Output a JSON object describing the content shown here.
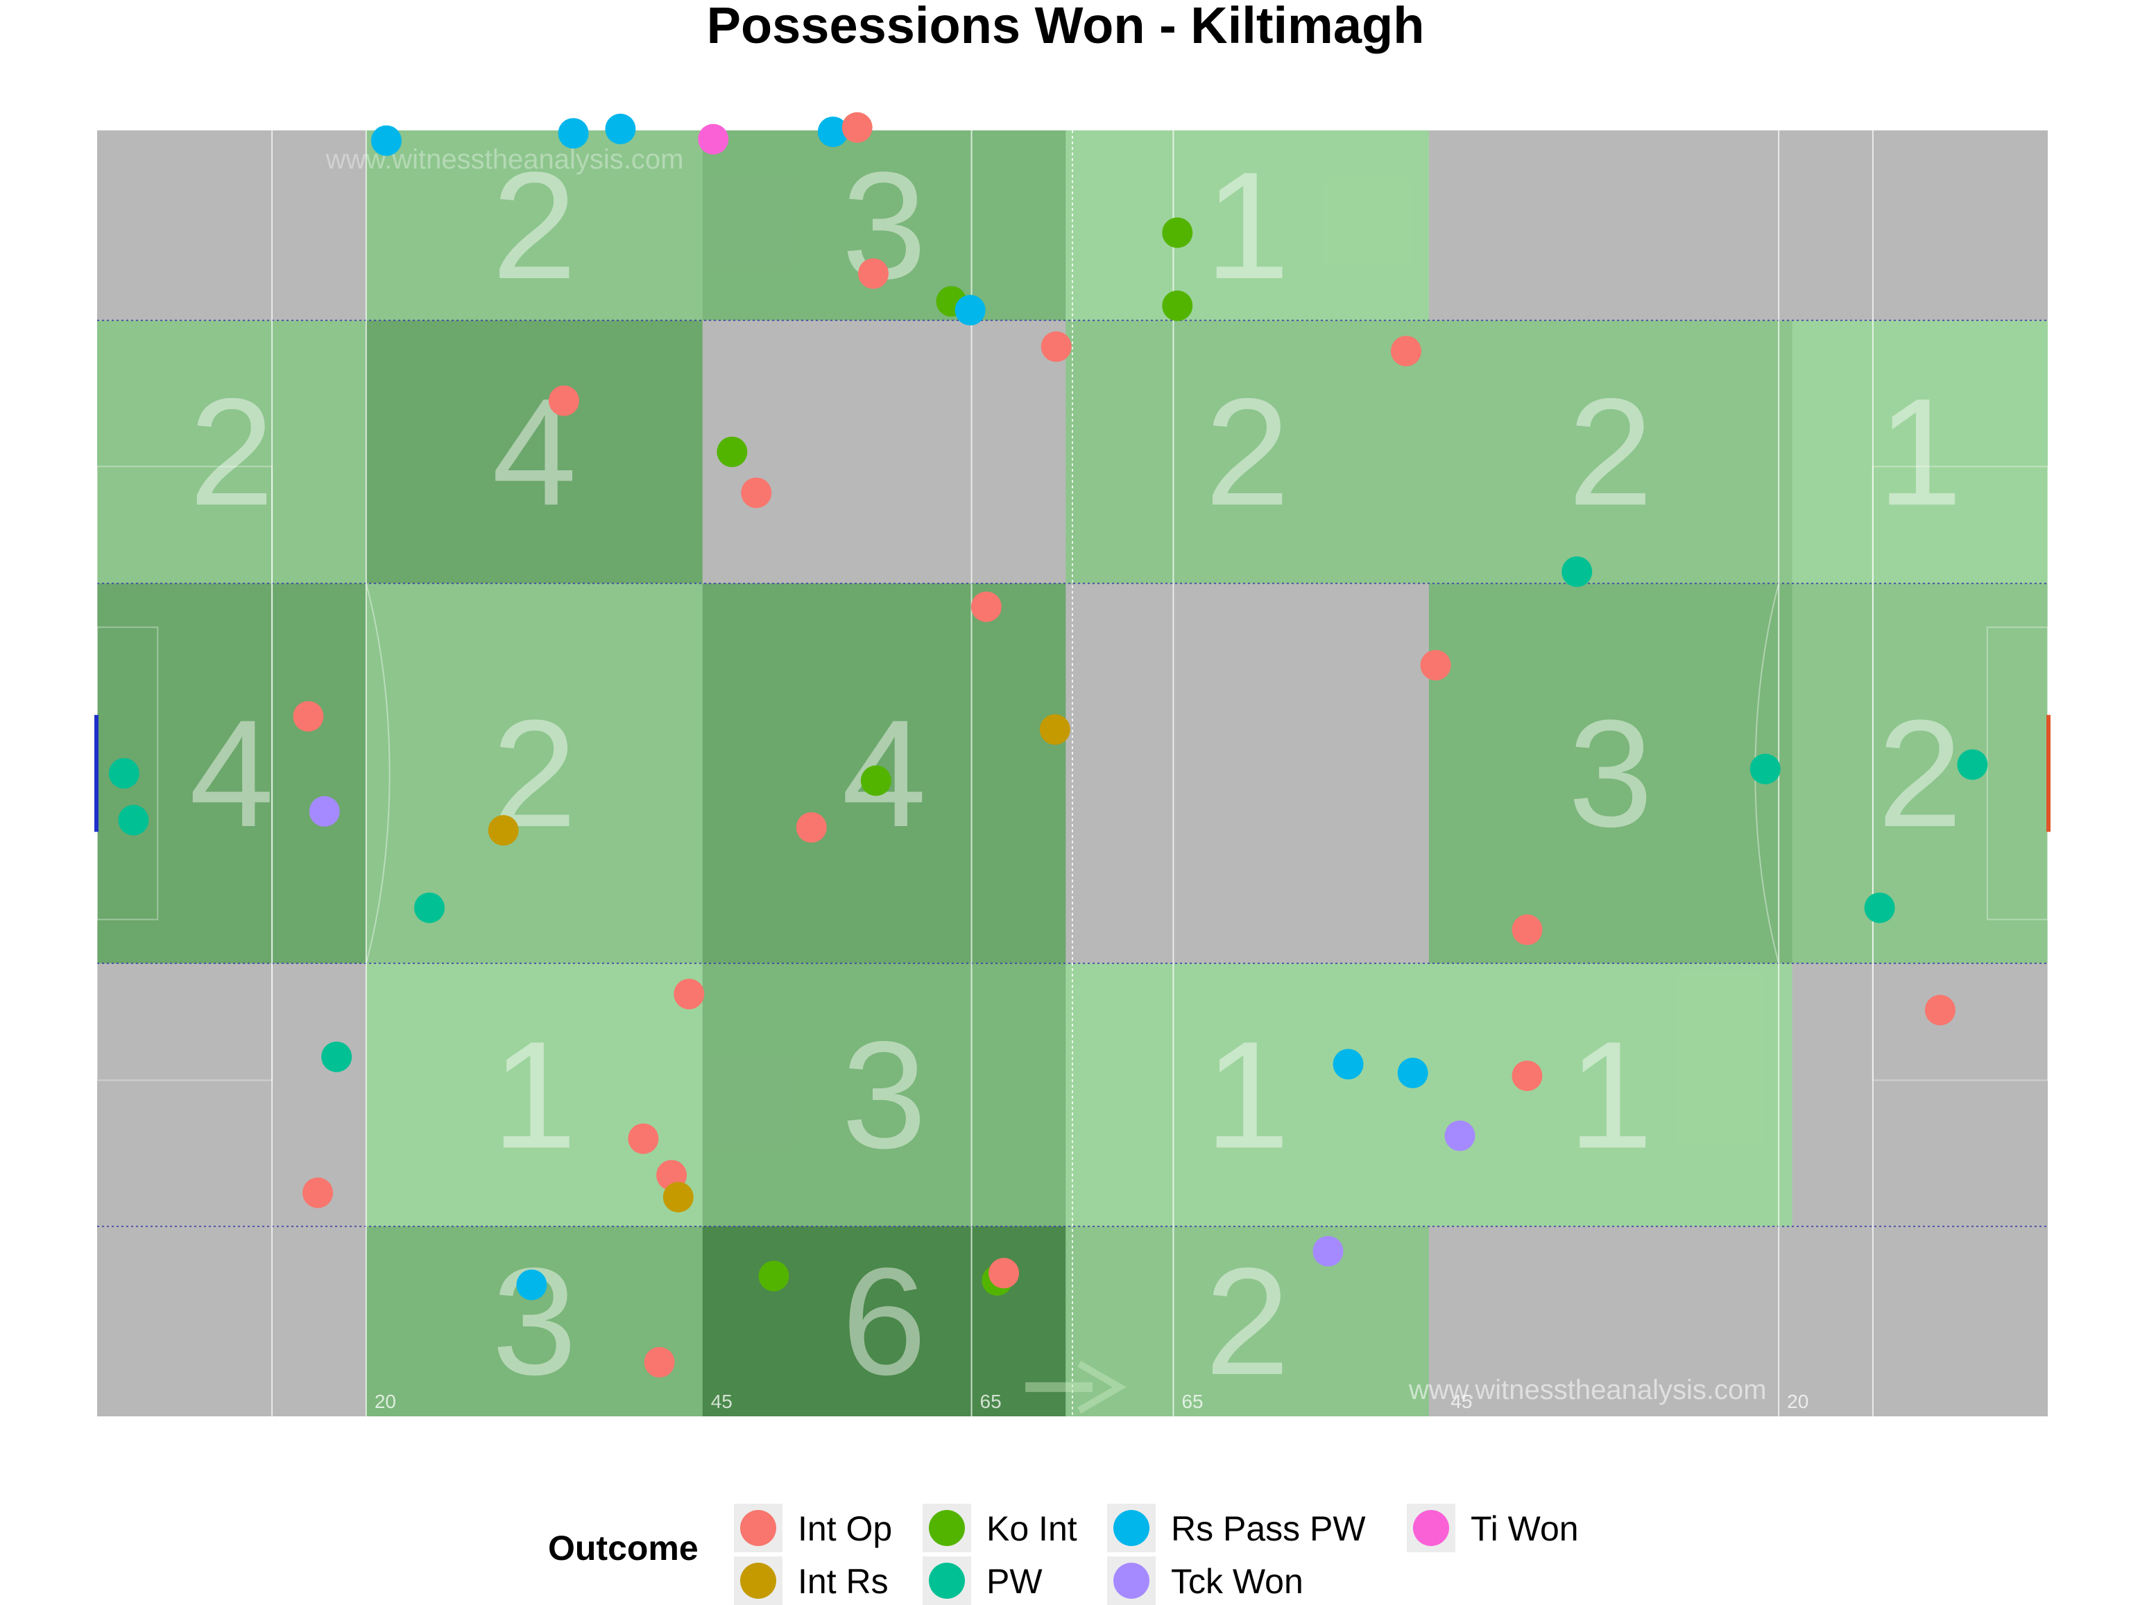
{
  "chart_data": {
    "type": "scatter",
    "title": "Possessions Won - Kiltimagh",
    "xlim": [
      0,
      145
    ],
    "ylim": [
      0,
      88
    ],
    "zone_x_edges": [
      0,
      20,
      45,
      72,
      99,
      126,
      145
    ],
    "zone_y_edges": [
      0,
      13,
      31,
      57,
      75,
      88
    ],
    "zone_counts": [
      [
        null,
        2,
        3,
        1,
        null,
        null
      ],
      [
        2,
        4,
        null,
        2,
        2,
        1
      ],
      [
        4,
        2,
        4,
        null,
        3,
        2
      ],
      [
        null,
        1,
        3,
        1,
        1,
        null
      ],
      [
        null,
        3,
        6,
        2,
        null,
        null
      ]
    ],
    "distance_labels": [
      "20",
      "45",
      "65",
      "65",
      "45",
      "20"
    ],
    "watermark": "www.witnesstheanalysis.com",
    "legend": {
      "title": "Outcome",
      "position": "bottom",
      "items": [
        "Int Op",
        "Int Rs",
        "Ko Int",
        "PW",
        "Rs Pass PW",
        "Tck Won",
        "Ti Won"
      ]
    },
    "colors": {
      "Int Op": "#F8766D",
      "Int Rs": "#C49A00",
      "Ko Int": "#53B400",
      "PW": "#00C094",
      "Rs Pass PW": "#00B6EB",
      "Tck Won": "#A58AFF",
      "Ti Won": "#FB61D7",
      "pitch_grey": "#b8b8b8",
      "zone_green": "#53a953"
    },
    "points": [
      {
        "x": 21.5,
        "y": 87.3,
        "outcome": "Rs Pass PW"
      },
      {
        "x": 35.4,
        "y": 87.8,
        "outcome": "Rs Pass PW"
      },
      {
        "x": 38.9,
        "y": 88.1,
        "outcome": "Rs Pass PW"
      },
      {
        "x": 45.8,
        "y": 87.4,
        "outcome": "Ti Won"
      },
      {
        "x": 54.7,
        "y": 87.9,
        "outcome": "Rs Pass PW"
      },
      {
        "x": 56.5,
        "y": 88.2,
        "outcome": "Int Op"
      },
      {
        "x": 57.7,
        "y": 78.2,
        "outcome": "Int Op"
      },
      {
        "x": 63.5,
        "y": 76.3,
        "outcome": "Ko Int"
      },
      {
        "x": 64.9,
        "y": 75.7,
        "outcome": "Rs Pass PW"
      },
      {
        "x": 80.3,
        "y": 81.0,
        "outcome": "Ko Int"
      },
      {
        "x": 80.3,
        "y": 76.0,
        "outcome": "Ko Int"
      },
      {
        "x": 71.3,
        "y": 73.2,
        "outcome": "Int Op"
      },
      {
        "x": 97.3,
        "y": 72.9,
        "outcome": "Int Op"
      },
      {
        "x": 34.7,
        "y": 69.5,
        "outcome": "Int Op"
      },
      {
        "x": 47.2,
        "y": 66.0,
        "outcome": "Ko Int"
      },
      {
        "x": 49.0,
        "y": 63.2,
        "outcome": "Int Op"
      },
      {
        "x": 110.0,
        "y": 57.8,
        "outcome": "PW"
      },
      {
        "x": 66.1,
        "y": 55.4,
        "outcome": "Int Op"
      },
      {
        "x": 99.5,
        "y": 51.4,
        "outcome": "Int Op"
      },
      {
        "x": 15.7,
        "y": 47.9,
        "outcome": "Int Op"
      },
      {
        "x": 71.2,
        "y": 47.0,
        "outcome": "Int Rs"
      },
      {
        "x": 2.0,
        "y": 44.0,
        "outcome": "PW"
      },
      {
        "x": 57.9,
        "y": 43.5,
        "outcome": "Ko Int"
      },
      {
        "x": 124.0,
        "y": 44.3,
        "outcome": "PW"
      },
      {
        "x": 139.4,
        "y": 44.6,
        "outcome": "PW"
      },
      {
        "x": 16.9,
        "y": 41.4,
        "outcome": "Tck Won"
      },
      {
        "x": 2.7,
        "y": 40.8,
        "outcome": "PW"
      },
      {
        "x": 30.2,
        "y": 40.1,
        "outcome": "Int Rs"
      },
      {
        "x": 53.1,
        "y": 40.3,
        "outcome": "Int Op"
      },
      {
        "x": 24.7,
        "y": 34.8,
        "outcome": "PW"
      },
      {
        "x": 132.5,
        "y": 34.8,
        "outcome": "PW"
      },
      {
        "x": 106.3,
        "y": 33.3,
        "outcome": "Int Op"
      },
      {
        "x": 44.0,
        "y": 28.9,
        "outcome": "Int Op"
      },
      {
        "x": 137.0,
        "y": 27.8,
        "outcome": "Int Op"
      },
      {
        "x": 17.8,
        "y": 24.6,
        "outcome": "PW"
      },
      {
        "x": 93.0,
        "y": 24.1,
        "outcome": "Rs Pass PW"
      },
      {
        "x": 97.8,
        "y": 23.5,
        "outcome": "Rs Pass PW"
      },
      {
        "x": 106.3,
        "y": 23.3,
        "outcome": "Int Op"
      },
      {
        "x": 101.3,
        "y": 19.2,
        "outcome": "Tck Won"
      },
      {
        "x": 40.6,
        "y": 19.0,
        "outcome": "Int Op"
      },
      {
        "x": 42.7,
        "y": 16.5,
        "outcome": "Int Op"
      },
      {
        "x": 43.2,
        "y": 15.0,
        "outcome": "Int Rs"
      },
      {
        "x": 16.4,
        "y": 15.3,
        "outcome": "Int Op"
      },
      {
        "x": 91.5,
        "y": 11.3,
        "outcome": "Tck Won"
      },
      {
        "x": 50.3,
        "y": 9.6,
        "outcome": "Ko Int"
      },
      {
        "x": 66.9,
        "y": 9.3,
        "outcome": "Ko Int"
      },
      {
        "x": 67.4,
        "y": 9.8,
        "outcome": "Int Op"
      },
      {
        "x": 32.3,
        "y": 9.0,
        "outcome": "Rs Pass PW"
      },
      {
        "x": 41.8,
        "y": 3.7,
        "outcome": "Int Op"
      }
    ]
  }
}
